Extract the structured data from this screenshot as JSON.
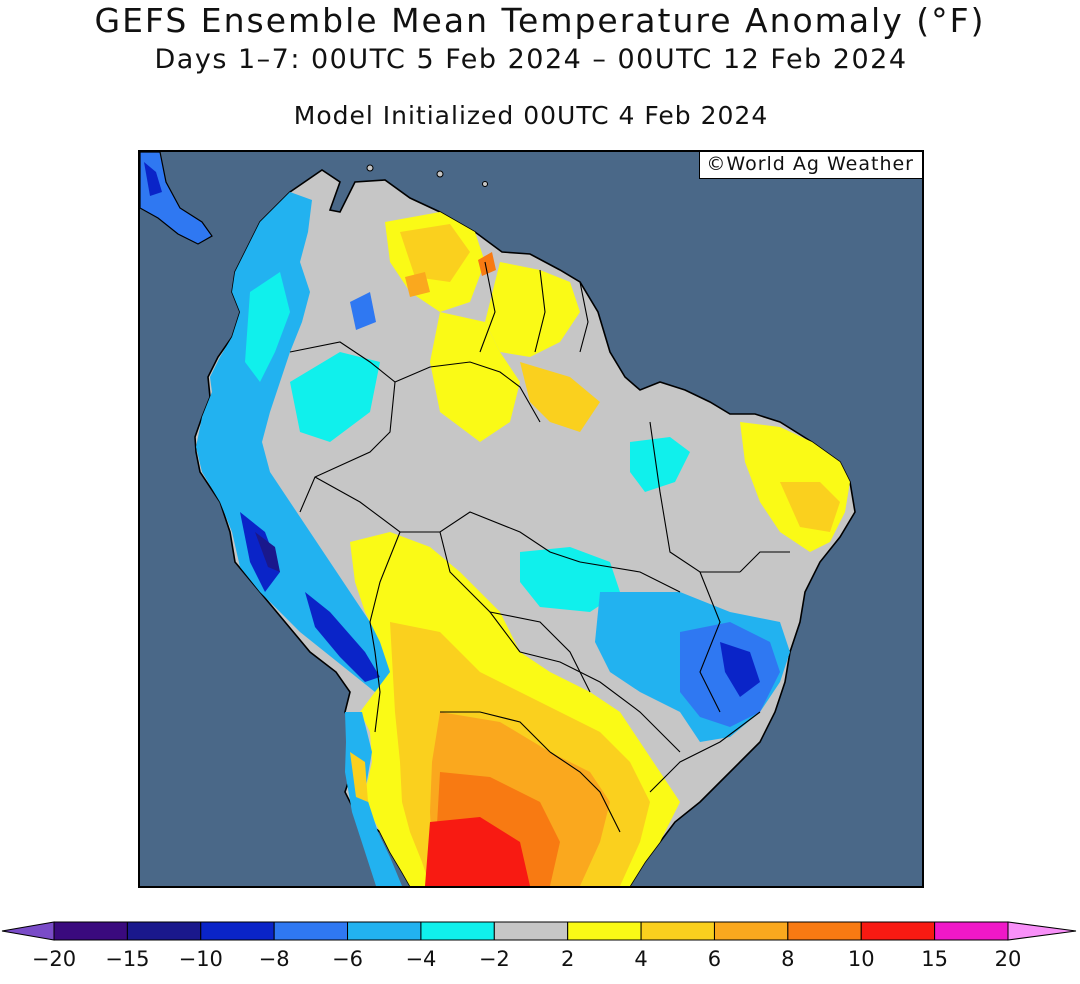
{
  "title": "GEFS Ensemble Mean Temperature Anomaly (°F)",
  "subtitle": "Days 1–7: 00UTC 5 Feb 2024 – 00UTC 12 Feb 2024",
  "init": "Model Initialized 00UTC 4 Feb 2024",
  "credit": "©World Ag Weather",
  "map": {
    "ocean_color": "#4a6888",
    "land_neutral_color": "#c6c6c6"
  },
  "colorbar": {
    "labels": [
      "−20",
      "−15",
      "−10",
      "−8",
      "−6",
      "−4",
      "−2",
      "2",
      "4",
      "6",
      "8",
      "10",
      "15",
      "20"
    ],
    "colors": [
      "#3a0a7e",
      "#1a188c",
      "#0a24c8",
      "#2f78f2",
      "#22b2f0",
      "#10f0ec",
      "#c6c6c6",
      "#fafa16",
      "#fad01e",
      "#faa81e",
      "#f87a12",
      "#f81a12",
      "#f018c8"
    ],
    "low_arrow_color": "#7a4cc8",
    "high_arrow_color": "#f890f8"
  }
}
